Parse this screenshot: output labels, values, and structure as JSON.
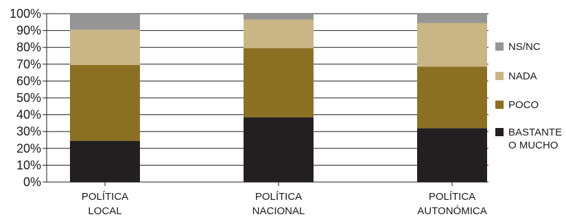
{
  "chart_data": {
    "type": "bar",
    "stacked": true,
    "categories": [
      [
        "POLÍTICA",
        "LOCAL"
      ],
      [
        "POLÍTICA",
        "NACIONAL"
      ],
      [
        "POLÍTICA",
        "AUTONÓMICA"
      ]
    ],
    "series": [
      {
        "name": [
          "BASTANTE",
          "O MUCHO"
        ],
        "color": "#231f20",
        "values": [
          24.5,
          38.5,
          32
        ]
      },
      {
        "name": [
          "POCO"
        ],
        "color": "#8b7024",
        "values": [
          45,
          41,
          36.5
        ]
      },
      {
        "name": [
          "NADA"
        ],
        "color": "#c9b586",
        "values": [
          21,
          17,
          26
        ]
      },
      {
        "name": [
          "NS/NC"
        ],
        "color": "#959595",
        "values": [
          9.5,
          3.5,
          5.5
        ]
      }
    ],
    "y_ticks": [
      "0%",
      "10%",
      "20%",
      "30%",
      "40%",
      "50%",
      "60%",
      "70%",
      "80%",
      "90%",
      "100%"
    ],
    "ylim": [
      0,
      100
    ],
    "grid": true,
    "legend_position": "right",
    "title": "",
    "xlabel": "",
    "ylabel": ""
  }
}
